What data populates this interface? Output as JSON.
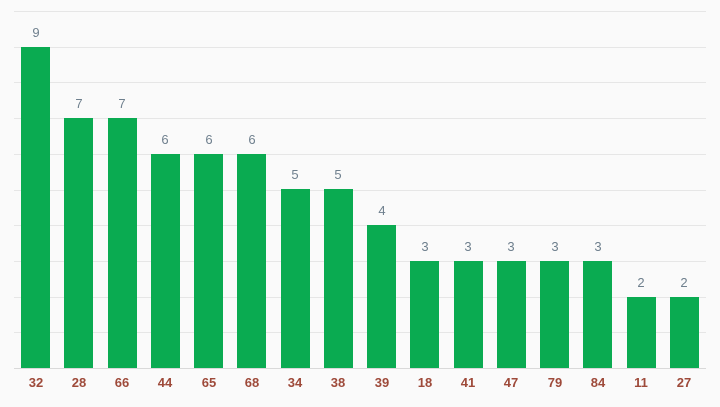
{
  "chart_data": {
    "type": "bar",
    "categories": [
      "32",
      "28",
      "66",
      "44",
      "65",
      "68",
      "34",
      "38",
      "39",
      "18",
      "41",
      "47",
      "79",
      "84",
      "11",
      "27"
    ],
    "values": [
      9,
      7,
      7,
      6,
      6,
      6,
      5,
      5,
      4,
      3,
      3,
      3,
      3,
      3,
      2,
      2
    ],
    "title": "",
    "xlabel": "",
    "ylabel": "",
    "ylim": [
      0,
      10
    ],
    "grid": true,
    "gridline_step": 1,
    "legend": "none",
    "value_labels_shown": true,
    "colors": {
      "bar": "#0aab51",
      "value_label": "#6e7f8d",
      "category_label": "#9e4a3a",
      "gridline": "#e6e6e6",
      "axis_line": "#d9d9d9",
      "background": "#fafafa"
    }
  }
}
